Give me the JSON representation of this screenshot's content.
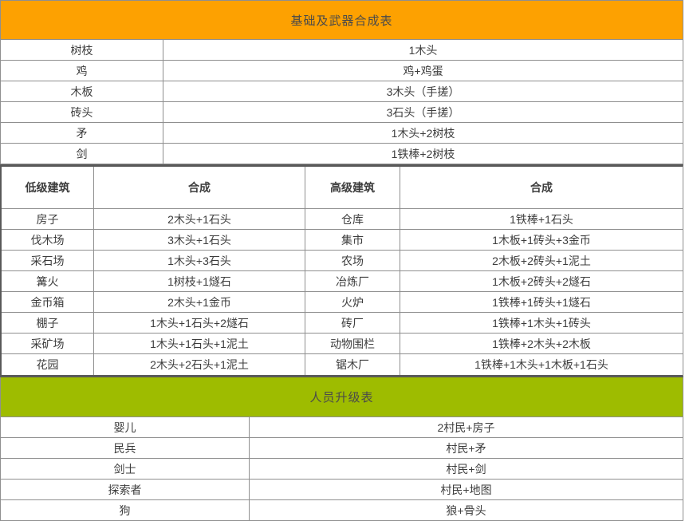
{
  "colors": {
    "orange_header": "#FDA101",
    "green_header": "#9EBC00",
    "thin_border": "#8f8f8f",
    "thick_border": "#595959",
    "text": "#3d3d3d"
  },
  "basic_table": {
    "title": "基础及武器合成表",
    "rows": [
      {
        "item": "树枝",
        "recipe": "1木头"
      },
      {
        "item": "鸡",
        "recipe": "鸡+鸡蛋"
      },
      {
        "item": "木板",
        "recipe": "3木头（手搓）"
      },
      {
        "item": "砖头",
        "recipe": "3石头（手搓）"
      },
      {
        "item": "矛",
        "recipe": "1木头+2树枝"
      },
      {
        "item": "剑",
        "recipe": "1铁棒+2树枝"
      }
    ]
  },
  "buildings_table": {
    "headers": {
      "low": "低级建筑",
      "low_recipe": "合成",
      "high": "高级建筑",
      "high_recipe": "合成"
    },
    "rows": [
      {
        "low": "房子",
        "low_recipe": "2木头+1石头",
        "high": "仓库",
        "high_recipe": "1铁棒+1石头"
      },
      {
        "low": "伐木场",
        "low_recipe": "3木头+1石头",
        "high": "集市",
        "high_recipe": "1木板+1砖头+3金币"
      },
      {
        "low": "采石场",
        "low_recipe": "1木头+3石头",
        "high": "农场",
        "high_recipe": "2木板+2砖头+1泥土"
      },
      {
        "low": "篝火",
        "low_recipe": "1树枝+1燧石",
        "high": "冶炼厂",
        "high_recipe": "1木板+2砖头+2燧石"
      },
      {
        "low": "金币箱",
        "low_recipe": "2木头+1金币",
        "high": "火炉",
        "high_recipe": "1铁棒+1砖头+1燧石"
      },
      {
        "low": "棚子",
        "low_recipe": "1木头+1石头+2燧石",
        "high": "砖厂",
        "high_recipe": "1铁棒+1木头+1砖头"
      },
      {
        "low": "采矿场",
        "low_recipe": "1木头+1石头+1泥土",
        "high": "动物围栏",
        "high_recipe": "1铁棒+2木头+2木板"
      },
      {
        "low": "花园",
        "low_recipe": "2木头+2石头+1泥土",
        "high": "锯木厂",
        "high_recipe": "1铁棒+1木头+1木板+1石头"
      }
    ]
  },
  "upgrade_table": {
    "title": "人员升级表",
    "rows": [
      {
        "item": "婴儿",
        "recipe": "2村民+房子"
      },
      {
        "item": "民兵",
        "recipe": "村民+矛"
      },
      {
        "item": "剑士",
        "recipe": "村民+剑"
      },
      {
        "item": "探索者",
        "recipe": "村民+地图"
      },
      {
        "item": "狗",
        "recipe": "狼+骨头"
      }
    ]
  }
}
